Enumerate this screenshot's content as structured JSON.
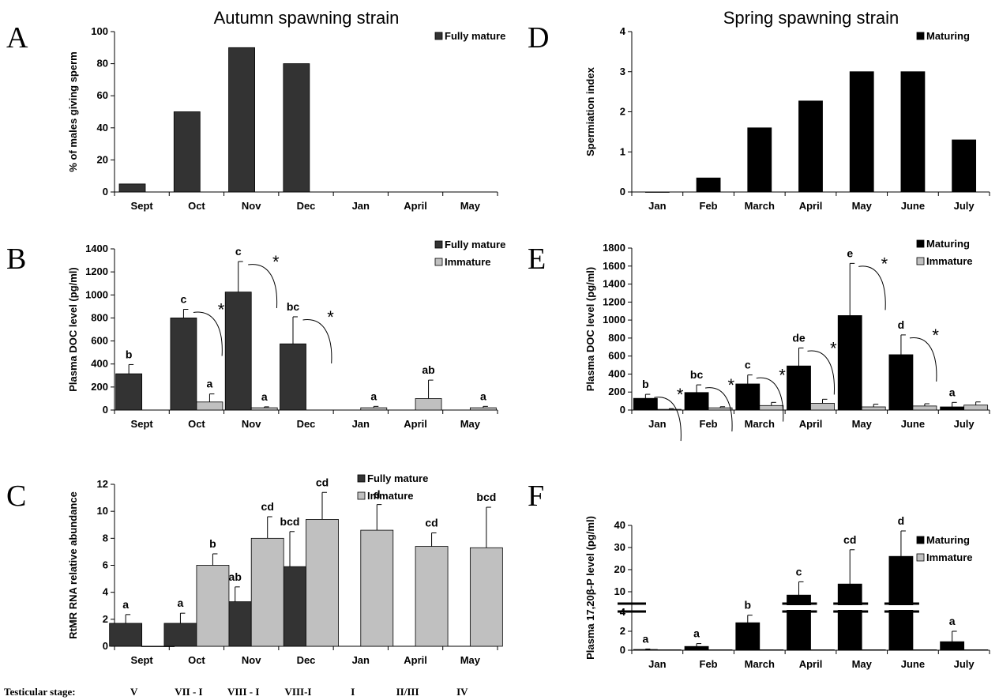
{
  "figure": {
    "titles": {
      "left": "Autumn spawning strain",
      "right": "Spring spawning strain"
    },
    "stage_label": "Testicular stage:",
    "stages": [
      "V",
      "VII - I",
      "VIII - I",
      "VIII-I",
      "I",
      "II/III",
      "IV"
    ]
  },
  "colors": {
    "dark": "#333333",
    "black": "#000000",
    "light": "#c0c0c0"
  },
  "chart_data": [
    {
      "panel": "A",
      "type": "bar",
      "categories": [
        "Sept",
        "Oct",
        "Nov",
        "Dec",
        "Jan",
        "April",
        "May"
      ],
      "ylabel": "% of males giving sperm",
      "ylim": [
        0,
        100
      ],
      "yticks": [
        0,
        20,
        40,
        60,
        80,
        100
      ],
      "legend_position": "top-right",
      "series": [
        {
          "name": "Fully mature",
          "color": "#333333",
          "values": [
            5,
            50,
            90,
            80,
            null,
            null,
            null
          ]
        }
      ]
    },
    {
      "panel": "B",
      "type": "bar",
      "categories": [
        "Sept",
        "Oct",
        "Nov",
        "Dec",
        "Jan",
        "April",
        "May"
      ],
      "ylabel": "Plasma DOC level (pg/ml)",
      "ylim": [
        0,
        1400
      ],
      "yticks": [
        0,
        200,
        400,
        600,
        800,
        1000,
        1200,
        1400
      ],
      "legend_position": "top-right",
      "series": [
        {
          "name": "Fully mature",
          "color": "#333333",
          "values": [
            315,
            800,
            1025,
            575,
            null,
            null,
            null
          ],
          "errors": [
            80,
            75,
            265,
            235,
            null,
            null,
            null
          ],
          "labels": [
            "b",
            "c",
            "c",
            "bc",
            "",
            "",
            ""
          ]
        },
        {
          "name": "Immature",
          "color": "#c0c0c0",
          "values": [
            null,
            70,
            20,
            null,
            20,
            100,
            20
          ],
          "errors": [
            null,
            70,
            8,
            null,
            12,
            160,
            12
          ],
          "labels": [
            "",
            "a",
            "a",
            "",
            "a",
            "ab",
            "a"
          ]
        }
      ],
      "annotations": [
        {
          "category": "Oct",
          "text": "*"
        },
        {
          "category": "Nov",
          "text": "*"
        },
        {
          "category": "Dec",
          "text": "*"
        }
      ]
    },
    {
      "panel": "C",
      "type": "bar",
      "categories": [
        "Sept",
        "Oct",
        "Nov",
        "Dec",
        "Jan",
        "April",
        "May"
      ],
      "ylabel": "RtMR RNA relative abundance",
      "ylim": [
        0,
        12
      ],
      "yticks": [
        0,
        2,
        4,
        6,
        8,
        10,
        12
      ],
      "legend_position": "top-center",
      "series": [
        {
          "name": "Fully mature",
          "color": "#333333",
          "values": [
            1.7,
            1.7,
            3.3,
            5.9,
            null,
            null,
            null
          ],
          "errors": [
            0.65,
            0.75,
            1.1,
            2.6,
            null,
            null,
            null
          ],
          "labels": [
            "a",
            "a",
            "ab",
            "bcd",
            "",
            "",
            ""
          ]
        },
        {
          "name": "Immature",
          "color": "#c0c0c0",
          "values": [
            0,
            6.0,
            8.0,
            9.4,
            8.6,
            7.4,
            7.3
          ],
          "errors": [
            0,
            0.85,
            1.6,
            2.0,
            1.9,
            1.0,
            3.0
          ],
          "labels": [
            "",
            "b",
            "cd",
            "cd",
            "d",
            "cd",
            "bcd"
          ]
        }
      ]
    },
    {
      "panel": "D",
      "type": "bar",
      "categories": [
        "Jan",
        "Feb",
        "March",
        "April",
        "May",
        "June",
        "July"
      ],
      "ylabel": "Spermiation index",
      "ylim": [
        0,
        4
      ],
      "yticks": [
        0,
        1,
        2,
        3,
        4
      ],
      "legend_position": "top-right",
      "series": [
        {
          "name": "Maturing",
          "color": "#000000",
          "values": [
            0,
            0.35,
            1.6,
            2.27,
            3.0,
            3.0,
            1.3
          ]
        }
      ]
    },
    {
      "panel": "E",
      "type": "bar",
      "categories": [
        "Jan",
        "Feb",
        "March",
        "April",
        "May",
        "June",
        "July"
      ],
      "ylabel": "Plasma DOC level (pg/ml)",
      "ylim": [
        0,
        1800
      ],
      "yticks": [
        0,
        200,
        400,
        600,
        800,
        1000,
        1200,
        1400,
        1600,
        1800
      ],
      "legend_position": "top-right",
      "series": [
        {
          "name": "Maturing",
          "color": "#000000",
          "values": [
            130,
            195,
            290,
            490,
            1050,
            615,
            35
          ],
          "errors": [
            45,
            85,
            100,
            200,
            580,
            220,
            50
          ],
          "labels": [
            "b",
            "bc",
            "c",
            "de",
            "e",
            "d",
            "a"
          ]
        },
        {
          "name": "Immature",
          "color": "#c0c0c0",
          "values": [
            8,
            25,
            50,
            75,
            35,
            45,
            55
          ],
          "errors": [
            8,
            12,
            35,
            45,
            30,
            25,
            35
          ],
          "labels": [
            "",
            "",
            "",
            "",
            "",
            "",
            ""
          ]
        }
      ],
      "annotations": [
        {
          "category": "Jan",
          "text": "*"
        },
        {
          "category": "Feb",
          "text": "*"
        },
        {
          "category": "March",
          "text": "*"
        },
        {
          "category": "April",
          "text": "*"
        },
        {
          "category": "May",
          "text": "*"
        },
        {
          "category": "June",
          "text": "*"
        }
      ]
    },
    {
      "panel": "F",
      "type": "bar",
      "categories": [
        "Jan",
        "Feb",
        "March",
        "April",
        "May",
        "June",
        "July"
      ],
      "ylabel": "Plasma 17,20β-P level (pg/ml)",
      "ylim": [
        0,
        40
      ],
      "yticks": [
        0,
        2,
        4,
        10,
        20,
        30,
        40
      ],
      "axis_break": {
        "lower": [
          0,
          4
        ],
        "upper": [
          5,
          40
        ]
      },
      "legend_position": "top-right",
      "series": [
        {
          "name": "Maturing",
          "color": "#000000",
          "values": [
            0.08,
            0.4,
            2.9,
            8.5,
            13.5,
            26,
            0.9
          ],
          "errors": [
            0.05,
            0.3,
            0.8,
            6.0,
            15.5,
            11.5,
            1.1
          ],
          "labels": [
            "a",
            "a",
            "b",
            "c",
            "cd",
            "d",
            "a"
          ]
        },
        {
          "name": "Immature",
          "color": "#c0c0c0",
          "values": [
            0.05,
            0.05,
            0.05,
            0.05,
            0.05,
            0.05,
            0.05
          ],
          "errors": [
            0,
            0,
            0,
            0,
            0,
            0,
            0
          ],
          "labels": [
            "",
            "",
            "",
            "",
            "",
            "",
            ""
          ]
        }
      ]
    }
  ]
}
